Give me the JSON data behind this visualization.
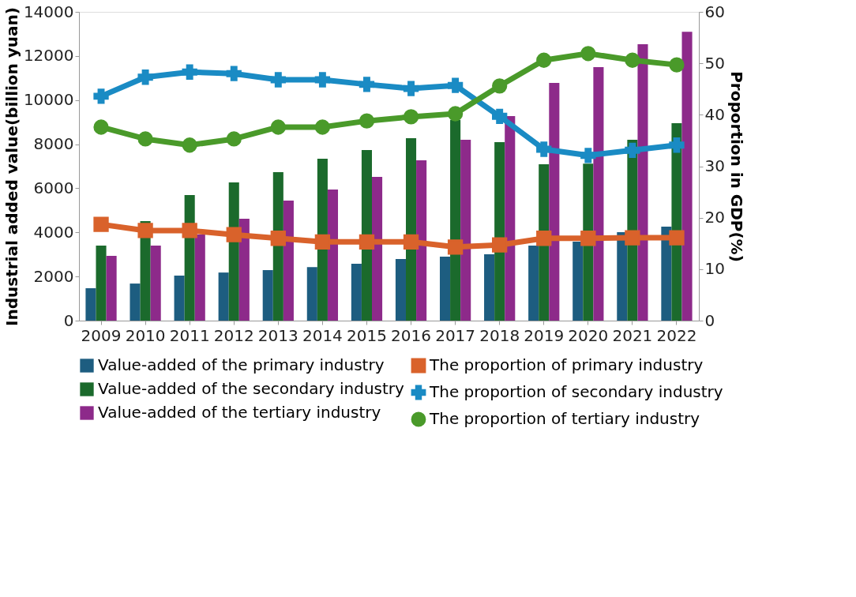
{
  "chart_data": {
    "type": "bar",
    "categories": [
      "2009",
      "2010",
      "2011",
      "2012",
      "2013",
      "2014",
      "2015",
      "2016",
      "2017",
      "2018",
      "2019",
      "2020",
      "2021",
      "2022"
    ],
    "ylabel": "Industrial added value(billion yuan)",
    "y2label": "Proportion  in GDP(%)",
    "ylim": [
      0,
      14000
    ],
    "yticks": [
      0,
      2000,
      4000,
      6000,
      8000,
      10000,
      12000,
      14000
    ],
    "y2lim": [
      0,
      60
    ],
    "y2ticks": [
      0,
      10,
      20,
      30,
      40,
      50,
      60
    ],
    "grid": false,
    "legend": "bottom",
    "series": [
      {
        "name": "Value-added of the primary industry",
        "color": "#1d5d80",
        "values": [
          1470,
          1680,
          2040,
          2180,
          2290,
          2430,
          2580,
          2790,
          2900,
          3010,
          3400,
          3580,
          4010,
          4260
        ]
      },
      {
        "name": "Value-added of the secondary industry",
        "color": "#1b6a2c",
        "values": [
          3400,
          4510,
          5690,
          6270,
          6730,
          7340,
          7730,
          8270,
          9100,
          8090,
          7090,
          7120,
          8200,
          8950
        ]
      },
      {
        "name": "Value-added of the tertiary industry",
        "color": "#8d2a8a",
        "values": [
          2940,
          3400,
          3900,
          4620,
          5440,
          5940,
          6520,
          7270,
          8200,
          9270,
          10780,
          11490,
          12530,
          13100
        ]
      },
      {
        "name": "The proportion of primary industry",
        "type": "line",
        "axis": "y2",
        "marker": "square",
        "color": "#d9622b",
        "values": [
          18.7,
          17.5,
          17.5,
          16.7,
          16.0,
          15.3,
          15.3,
          15.3,
          14.3,
          14.7,
          16.0,
          16.0,
          16.1,
          16.1
        ]
      },
      {
        "name": "The proportion of secondary industry",
        "type": "line",
        "axis": "y2",
        "marker": "cross",
        "color": "#1a8bc4",
        "values": [
          43.6,
          47.3,
          48.3,
          48.0,
          46.8,
          46.8,
          45.9,
          45.1,
          45.7,
          39.7,
          33.3,
          32.1,
          33.1,
          34.1
        ]
      },
      {
        "name": "The proportion of tertiary industry",
        "type": "line",
        "axis": "y2",
        "marker": "circle",
        "color": "#4a9a2a",
        "values": [
          37.6,
          35.3,
          34.1,
          35.3,
          37.6,
          37.6,
          38.8,
          39.6,
          40.2,
          45.6,
          50.6,
          51.9,
          50.6,
          49.7
        ]
      }
    ]
  }
}
